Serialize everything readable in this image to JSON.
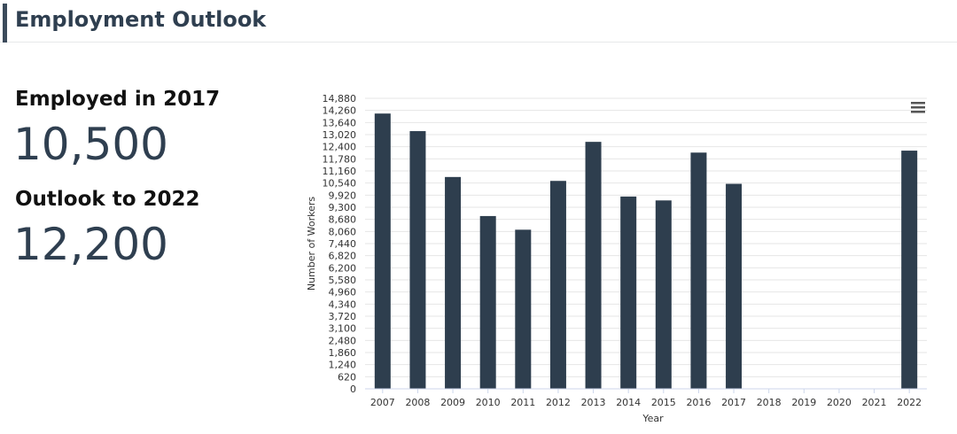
{
  "header": {
    "title": "Employment Outlook"
  },
  "stats": {
    "employed_label": "Employed in 2017",
    "employed_value": "10,500",
    "outlook_label": "Outlook to 2022",
    "outlook_value": "12,200"
  },
  "chart_data": {
    "type": "bar",
    "categories": [
      "2007",
      "2008",
      "2009",
      "2010",
      "2011",
      "2012",
      "2013",
      "2014",
      "2015",
      "2016",
      "2017",
      "2018",
      "2019",
      "2020",
      "2021",
      "2022"
    ],
    "values": [
      14100,
      13200,
      10850,
      8850,
      8150,
      10650,
      12650,
      9850,
      9650,
      12100,
      10500,
      null,
      null,
      null,
      null,
      12200
    ],
    "xlabel": "Year",
    "ylabel": "Number of Workers",
    "ylim": [
      0,
      14880
    ],
    "yticks": [
      0,
      620,
      1240,
      1860,
      2480,
      3100,
      3720,
      4340,
      4960,
      5580,
      6200,
      6820,
      7440,
      8060,
      8680,
      9300,
      9920,
      10540,
      11160,
      11780,
      12400,
      13020,
      13640,
      14260,
      14880
    ],
    "grid": true,
    "color": "#2e3e4e"
  },
  "menu": {
    "icon": "hamburger-menu-icon"
  }
}
